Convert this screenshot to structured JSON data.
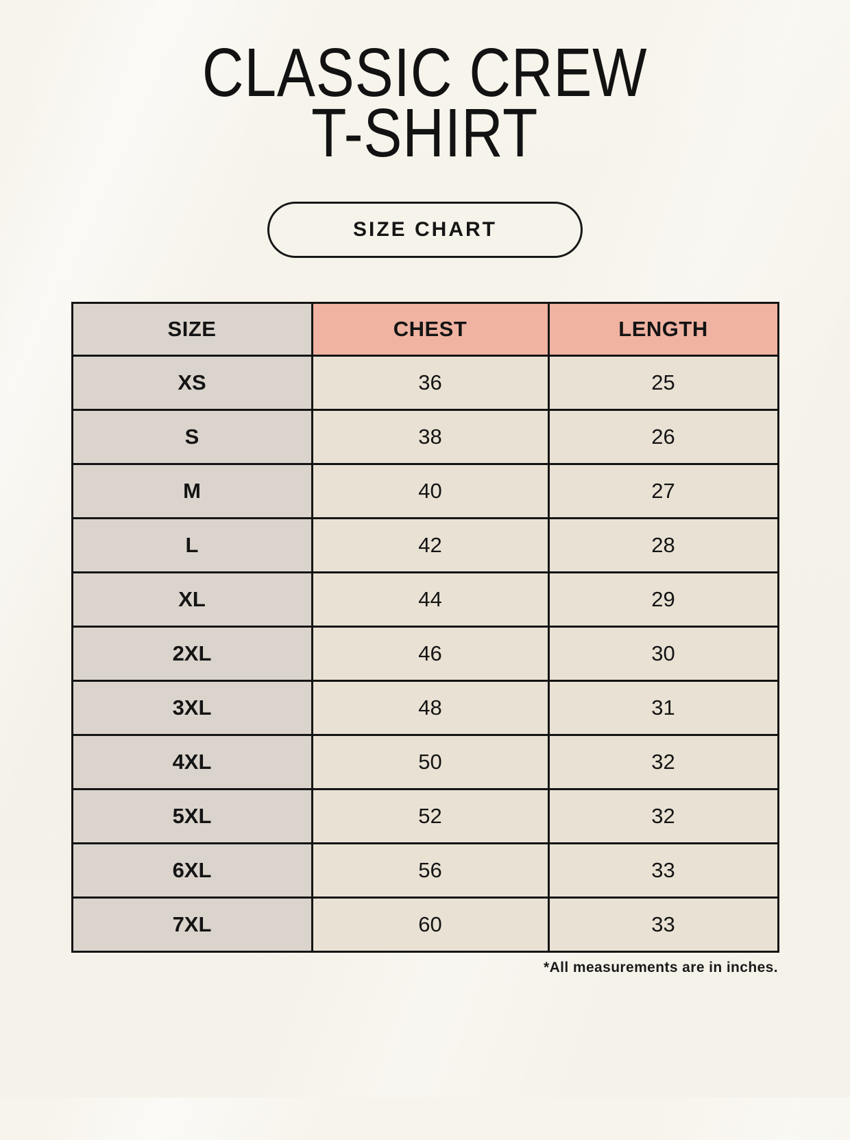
{
  "header": {
    "title_line1": "CLASSIC CREW",
    "title_line2": "T-SHIRT",
    "badge_label": "SIZE CHART"
  },
  "table": {
    "columns": [
      "SIZE",
      "CHEST",
      "LENGTH"
    ],
    "rows": [
      {
        "size": "XS",
        "chest": "36",
        "length": "25"
      },
      {
        "size": "S",
        "chest": "38",
        "length": "26"
      },
      {
        "size": "M",
        "chest": "40",
        "length": "27"
      },
      {
        "size": "L",
        "chest": "42",
        "length": "28"
      },
      {
        "size": "XL",
        "chest": "44",
        "length": "29"
      },
      {
        "size": "2XL",
        "chest": "46",
        "length": "30"
      },
      {
        "size": "3XL",
        "chest": "48",
        "length": "31"
      },
      {
        "size": "4XL",
        "chest": "50",
        "length": "32"
      },
      {
        "size": "5XL",
        "chest": "52",
        "length": "32"
      },
      {
        "size": "6XL",
        "chest": "56",
        "length": "33"
      },
      {
        "size": "7XL",
        "chest": "60",
        "length": "33"
      }
    ]
  },
  "footer": {
    "note": "*All measurements are in inches."
  },
  "colors": {
    "background": "#f5f2e9",
    "header_accent": "#f0b3a1",
    "size_column": "#dbd4cd",
    "data_cell": "#e9e2d4",
    "ink": "#141414"
  }
}
